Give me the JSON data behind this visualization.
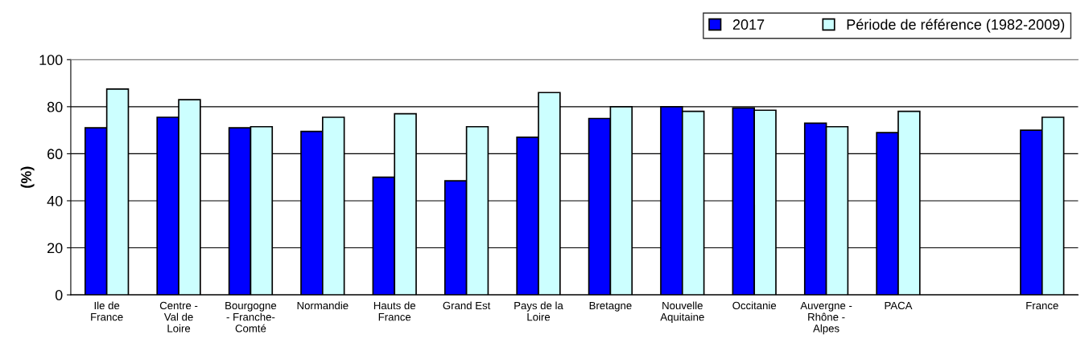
{
  "chart_data": {
    "type": "bar",
    "ylabel": "(%)",
    "categories": [
      "Ile de\nFrance",
      "Centre -\nVal de\nLoire",
      "Bourgogne\n- Franche-\nComté",
      "Normandie",
      "Hauts de\nFrance",
      "Grand Est",
      "Pays de la\nLoire",
      "Bretagne",
      "Nouvelle\nAquitaine",
      "Occitanie",
      "Auvergne -\nRhône -\nAlpes",
      "PACA",
      null,
      "France"
    ],
    "series": [
      {
        "name": "2017",
        "color": "#0000ff",
        "values": [
          71,
          75.5,
          71,
          69.5,
          50,
          48.5,
          67,
          75,
          80,
          79.5,
          73,
          69,
          null,
          70
        ]
      },
      {
        "name": "Période de référence (1982-2009)",
        "color": "#ccffff",
        "values": [
          87.5,
          83,
          71.5,
          75.5,
          77,
          71.5,
          86,
          80,
          78,
          78.5,
          71.5,
          78,
          null,
          75.5
        ]
      }
    ],
    "ylim": [
      0,
      100
    ],
    "yticks": [
      0,
      20,
      40,
      60,
      80,
      100
    ],
    "grid": "y",
    "legend": "top right"
  }
}
